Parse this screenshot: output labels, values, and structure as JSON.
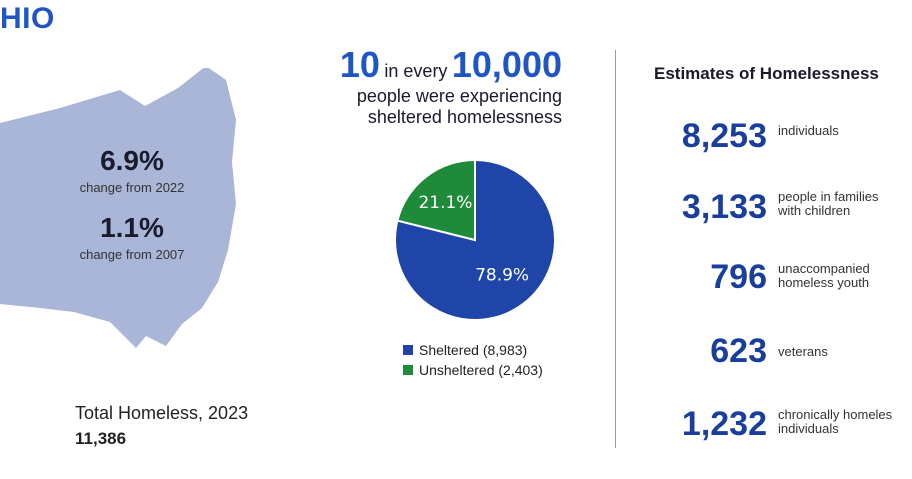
{
  "state": {
    "title": "HIO"
  },
  "left": {
    "stat1_value": "6.9%",
    "stat1_label": "change from 2022",
    "stat2_value": "1.1%",
    "stat2_label": "change from 2007",
    "total_label": "Total Homeless, 2023",
    "total_value": "11,386"
  },
  "headline": {
    "big1": "10",
    "mid": "in every",
    "big2": "10,000",
    "line2": "people were experiencing",
    "line3": "sheltered homelessness"
  },
  "chart_data": {
    "type": "pie",
    "slices": [
      {
        "label": "Sheltered (8,983)",
        "value": 78.9,
        "display": "78.9%",
        "color": "#1f45a8"
      },
      {
        "label": "Unsheltered (2,403)",
        "value": 21.1,
        "display": "21.1%",
        "color": "#1e8a3a"
      }
    ]
  },
  "estimates": {
    "title": "Estimates of Homelessness",
    "items": [
      {
        "value": "8,253",
        "label": "individuals"
      },
      {
        "value": "3,133",
        "label": "people in families\nwith children"
      },
      {
        "value": "796",
        "label": "unaccompanied\nhomeless youth"
      },
      {
        "value": "623",
        "label": "veterans"
      },
      {
        "value": "1,232",
        "label": "chronically homeles\nindividuals"
      }
    ]
  },
  "colors": {
    "accent": "#1f56c4",
    "map": "#a9b6d8",
    "number": "#1a3e9c"
  }
}
